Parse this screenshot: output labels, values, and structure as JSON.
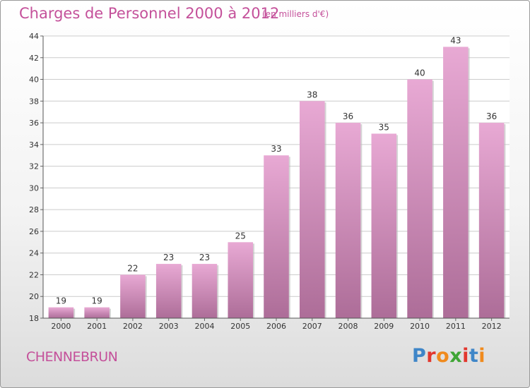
{
  "header": {
    "title": "Charges de Personnel 2000 à 2012",
    "subtitle": "(en milliers d'€)"
  },
  "footer": {
    "place": "CHENNEBRUN",
    "logo_text": "Proxiti",
    "logo_colors": [
      "#3f86c8",
      "#e2372e",
      "#f08a1d",
      "#3fa535",
      "#e2372e",
      "#3f86c8",
      "#f08a1d"
    ]
  },
  "chart_data": {
    "type": "bar",
    "categories": [
      "2000",
      "2001",
      "2002",
      "2003",
      "2004",
      "2005",
      "2006",
      "2007",
      "2008",
      "2009",
      "2010",
      "2011",
      "2012"
    ],
    "values": [
      19,
      19,
      22,
      23,
      23,
      25,
      33,
      38,
      36,
      35,
      40,
      43,
      36
    ],
    "data_labels": [
      "19",
      "19",
      "22",
      "23",
      "23",
      "25",
      "33",
      "38",
      "36",
      "35",
      "40",
      "43",
      "36"
    ],
    "ylim": [
      18,
      44
    ],
    "yticks": [
      18,
      20,
      22,
      24,
      26,
      28,
      30,
      32,
      34,
      36,
      38,
      40,
      42,
      44
    ],
    "grid": true,
    "colors": {
      "bar_top": "#e8a9d4",
      "bar_bottom": "#ad6d98",
      "grid": "#cccccc",
      "axis_text": "#333333"
    }
  }
}
